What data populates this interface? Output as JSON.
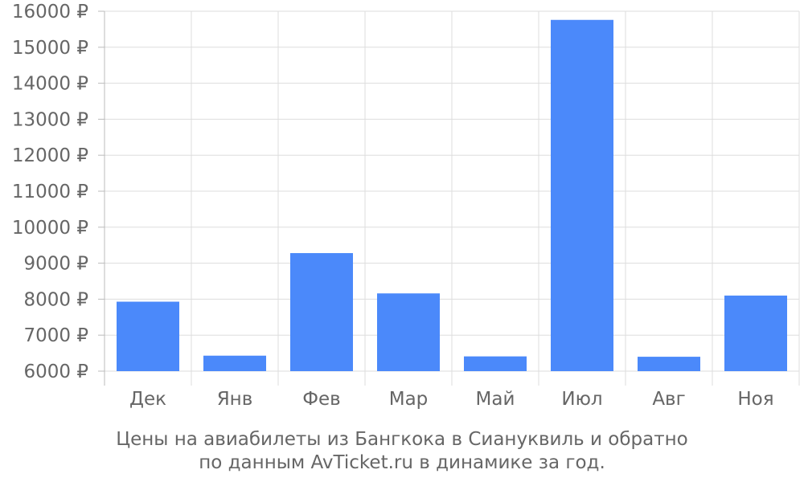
{
  "chart_data": {
    "type": "bar",
    "categories": [
      "Дек",
      "Янв",
      "Фев",
      "Мар",
      "Май",
      "Июл",
      "Авг",
      "Ноя"
    ],
    "series": [
      {
        "values": [
          7930,
          6430,
          9280,
          8160,
          6410,
          15760,
          6400,
          8100
        ]
      }
    ],
    "ylim": [
      6000,
      16000
    ],
    "yticks": [
      6000,
      7000,
      8000,
      9000,
      10000,
      11000,
      12000,
      13000,
      14000,
      15000,
      16000
    ],
    "ytick_labels": [
      "6000 ₽",
      "7000 ₽",
      "8000 ₽",
      "9000 ₽",
      "10000 ₽",
      "11000 ₽",
      "12000 ₽",
      "13000 ₽",
      "14000 ₽",
      "15000 ₽",
      "16000 ₽"
    ],
    "grid": true,
    "bar_color": "#4b89fa",
    "grid_color": "#dddddd",
    "text_color": "#666666"
  },
  "caption": {
    "line1": "Цены на авиабилеты из Бангкока в Сиануквиль и обратно",
    "line2": "по данным AvTicket.ru в динамике за год."
  }
}
